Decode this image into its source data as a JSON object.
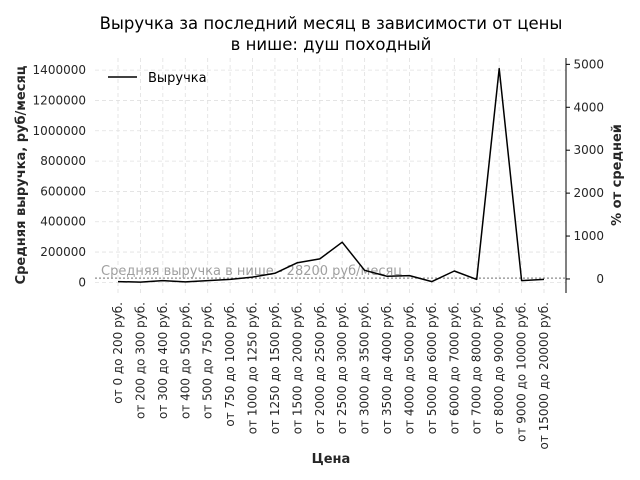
{
  "chart_data": {
    "type": "line",
    "title": [
      "Выручка за последний месяц в зависимости от цены",
      "в нише: душ походный"
    ],
    "xlabel": "Цена",
    "ylabel": "Средняя выручка, руб/месяц",
    "y2label": "% от средней",
    "categories": [
      "от 0 до 200 руб.",
      "от 200 до 300 руб.",
      "от 300 до 400 руб.",
      "от 400 до 500 руб.",
      "от 500 до 750 руб.",
      "от 750 до 1000 руб.",
      "от 1000 до 1250 руб.",
      "от 1250 до 1500 руб.",
      "от 1500 до 2000 руб.",
      "от 2000 до 2500 руб.",
      "от 2500 до 3000 руб.",
      "от 3000 до 3500 руб.",
      "от 3500 до 4000 руб.",
      "от 4000 до 5000 руб.",
      "от 5000 до 6000 руб.",
      "от 6000 до 7000 руб.",
      "от 7000 до 8000 руб.",
      "от 8000 до 9000 руб.",
      "от 9000 до 10000 руб.",
      "от 15000 до 20000 руб."
    ],
    "series": [
      {
        "name": "Выручка",
        "color": "#000000",
        "values": [
          5000,
          2000,
          12000,
          3000,
          12000,
          20000,
          35000,
          60000,
          130000,
          155000,
          265000,
          80000,
          40000,
          45000,
          5000,
          75000,
          20000,
          1410000,
          12000,
          20000
        ]
      }
    ],
    "ylim": [
      -70000,
      1480000
    ],
    "yticks": [
      0,
      200000,
      400000,
      600000,
      800000,
      1000000,
      1200000,
      1400000
    ],
    "y2lim": [
      -327,
      5148
    ],
    "y2ticks": [
      0,
      1000,
      2000,
      3000,
      4000,
      5000
    ],
    "reference_line": {
      "value": 28200,
      "label": "Средняя выручка в нише - 28200 руб/месяц"
    },
    "grid": true,
    "legend": "top-left"
  }
}
